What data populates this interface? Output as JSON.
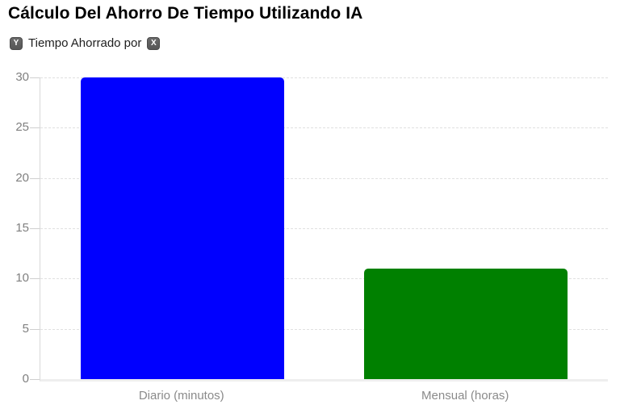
{
  "chart": {
    "title": "Cálculo Del Ahorro De Tiempo Utilizando IA",
    "legend": {
      "y_badge": "Y",
      "text": "Tiempo Ahorrado por",
      "x_badge": "X"
    }
  },
  "chart_data": {
    "type": "bar",
    "title": "Cálculo Del Ahorro De Tiempo Utilizando IA",
    "categories": [
      "Diario (minutos)",
      "Mensual (horas)"
    ],
    "values": [
      30,
      11
    ],
    "bar_colors": [
      "#0000ff",
      "#008000"
    ],
    "xlabel": "",
    "ylabel": "",
    "ylim": [
      0,
      30
    ],
    "y_ticks": [
      0,
      5,
      10,
      15,
      20,
      25,
      30
    ],
    "grid": "horizontal-dashed",
    "legend_position": "top-left",
    "legend_entries": [
      "Y Tiempo Ahorrado por X"
    ]
  },
  "ui_colors": {
    "bar_blue": "#0000ff",
    "bar_green": "#008000",
    "gridline": "#e0e0e0",
    "axis_line": "#d9d9d9",
    "baseline": "#eeeeee",
    "tick_mark": "#cfcfcf",
    "y_tick_label": "#7f7f7f",
    "x_label": "#8a8a8a",
    "badge_bg": "#565656",
    "badge_text": "#ffffff",
    "title_text": "#000000",
    "legend_text": "#202020"
  }
}
